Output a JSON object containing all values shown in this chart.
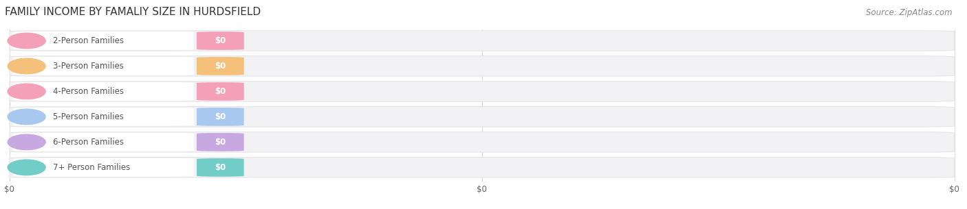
{
  "title": "FAMILY INCOME BY FAMALIY SIZE IN HURDSFIELD",
  "source": "Source: ZipAtlas.com",
  "categories": [
    "2-Person Families",
    "3-Person Families",
    "4-Person Families",
    "5-Person Families",
    "6-Person Families",
    "7+ Person Families"
  ],
  "values": [
    0,
    0,
    0,
    0,
    0,
    0
  ],
  "bar_colors": [
    "#f4a0b8",
    "#f5c07a",
    "#f4a0b8",
    "#a8c8f0",
    "#c8a8e0",
    "#72cdc8"
  ],
  "background_color": "#ffffff",
  "bar_bg_color": "#f2f2f4",
  "bar_bg_edge": "#e0e0e4",
  "title_fontsize": 11,
  "label_fontsize": 8.5,
  "source_fontsize": 8.5,
  "tick_label_fontsize": 8.5
}
